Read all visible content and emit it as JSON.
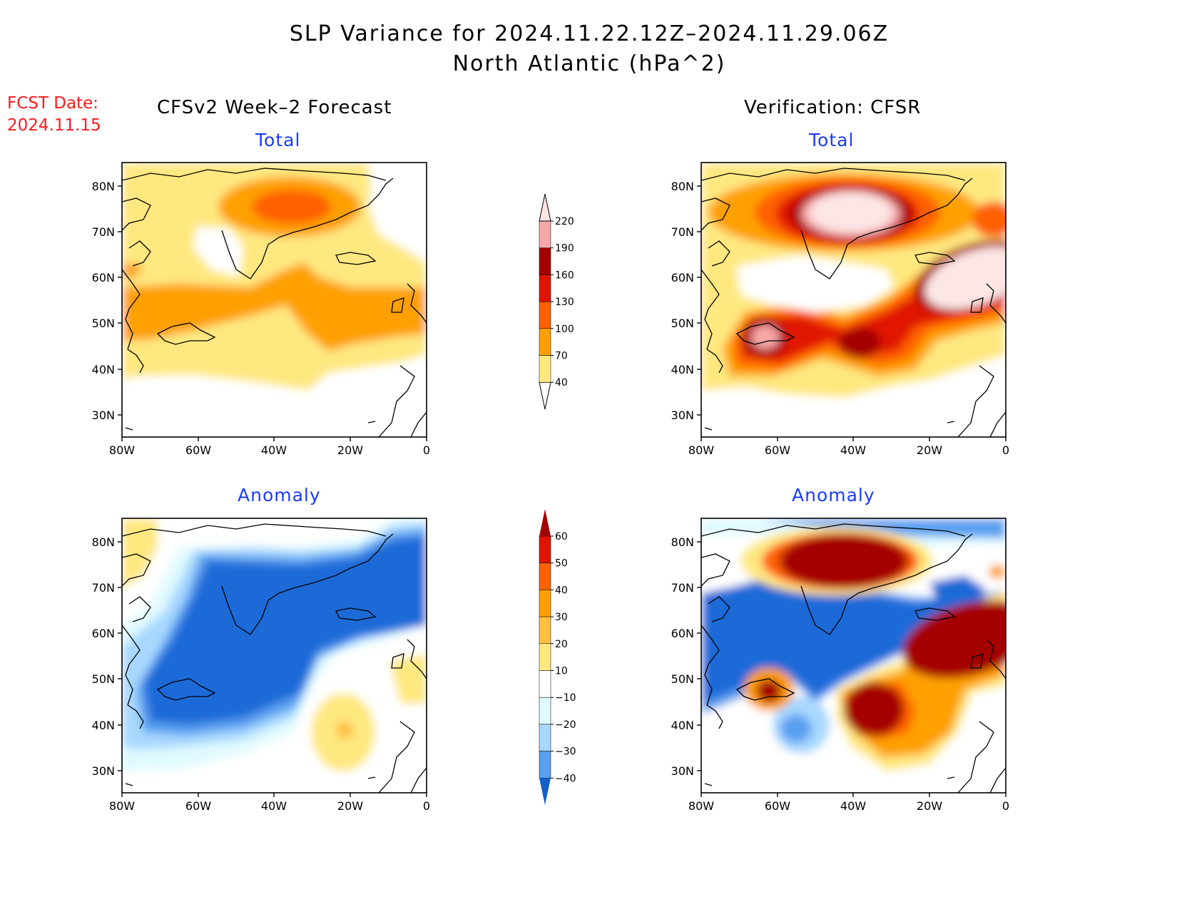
{
  "title_line1": "SLP Variance for 2024.11.22.12Z–2024.11.29.06Z",
  "title_line2": "North Atlantic (hPa^2)",
  "fcst_label": "FCST Date:",
  "fcst_date": "2024.11.15",
  "left_header": "CFSv2 Week–2 Forecast",
  "right_header": "Verification: CFSR",
  "panel_titles": {
    "total": "Total",
    "anomaly": "Anomaly"
  },
  "lat_labels": [
    "80N",
    "70N",
    "60N",
    "50N",
    "40N",
    "30N"
  ],
  "lon_labels": [
    "80W",
    "60W",
    "40W",
    "20W",
    "0"
  ],
  "colorbar_total": {
    "levels": [
      "40",
      "70",
      "100",
      "130",
      "160",
      "190",
      "220"
    ],
    "colors": [
      "#ffe880",
      "#ffa000",
      "#ff6000",
      "#e01400",
      "#a50000",
      "#f7a8a8",
      "#fde6e6"
    ]
  },
  "colorbar_anomaly": {
    "levels": [
      "60",
      "50",
      "40",
      "30",
      "20",
      "10",
      "−10",
      "−20",
      "−30",
      "−40"
    ],
    "colors": [
      "#a50000",
      "#e01400",
      "#ff6000",
      "#ffa000",
      "#ffc040",
      "#ffe880",
      "#ffffff",
      "#e0faff",
      "#a8d8ff",
      "#5aa0f0",
      "#1a6ad8",
      "#1460c8"
    ]
  },
  "palette": {
    "yellow": "#ffe880",
    "orange": "#ffa000",
    "dkorange": "#ff6000",
    "red": "#e01400",
    "darkred": "#a50000",
    "pink": "#f7a8a8",
    "palepink": "#fde6e6",
    "cyan": "#e0faff",
    "ltblue": "#a8d8ff",
    "midblue": "#5aa0f0",
    "blue": "#1a6ad8"
  }
}
